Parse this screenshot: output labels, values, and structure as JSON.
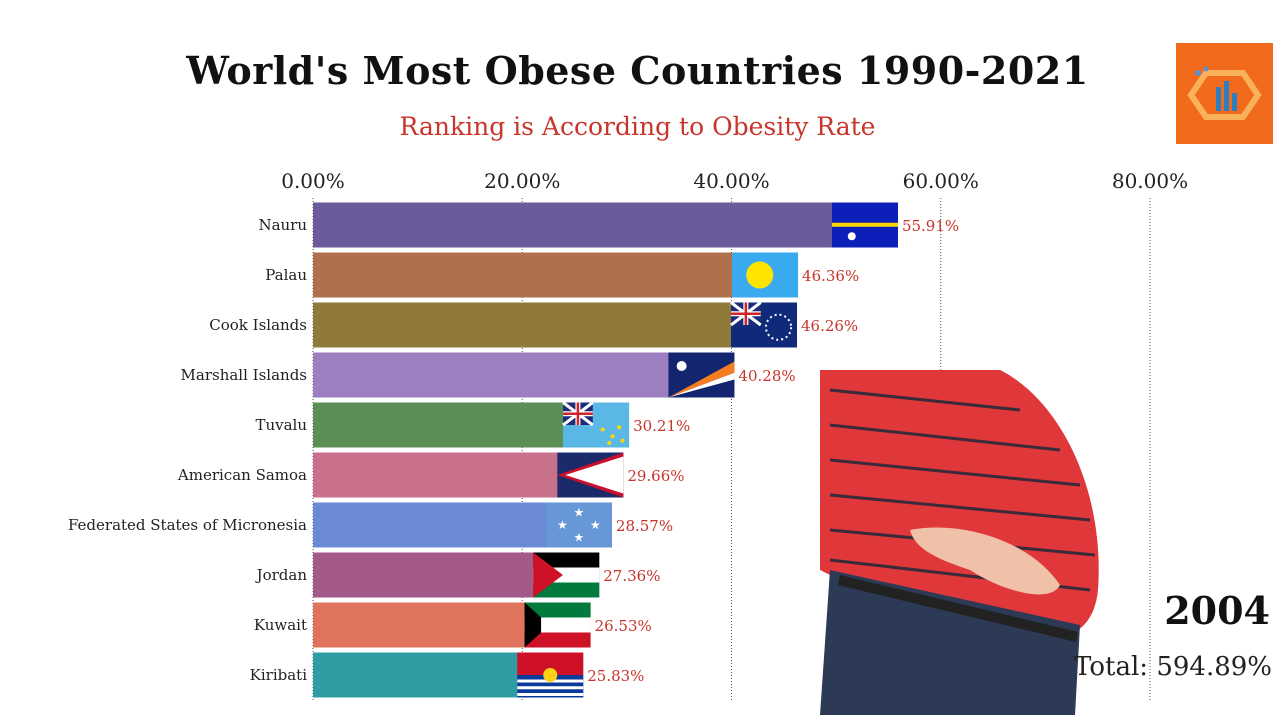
{
  "chart_data": {
    "type": "bar",
    "orientation": "horizontal",
    "title": "World's Most Obese Countries 1990-2021",
    "subtitle": "Ranking is According to Obesity Rate",
    "xlim": [
      0,
      80
    ],
    "x_ticks": [
      "0.00%",
      "20.00%",
      "40.00%",
      "60.00%",
      "80.00%"
    ],
    "x_tick_values": [
      0,
      20,
      40,
      60,
      80
    ],
    "grid": "vertical dotted",
    "categories": [
      "Nauru",
      "Palau",
      "Cook Islands",
      "Marshall Islands",
      "Tuvalu",
      "American Samoa",
      "Federated States of Micronesia",
      "Jordan",
      "Kuwait",
      "Kiribati"
    ],
    "values": [
      55.91,
      46.36,
      46.26,
      40.28,
      30.21,
      29.66,
      28.57,
      27.36,
      26.53,
      25.83
    ],
    "value_labels": [
      "55.91%",
      "46.36%",
      "46.26%",
      "40.28%",
      "30.21%",
      "29.66%",
      "28.57%",
      "27.36%",
      "26.53%",
      "25.83%"
    ],
    "colors": [
      "#6c5b9b",
      "#b0704e",
      "#8f7a3a",
      "#9b7fc0",
      "#5b8f56",
      "#c9718a",
      "#6a8bd4",
      "#a45a88",
      "#df735d",
      "#2f9da3"
    ],
    "flags": [
      "nauru-flag",
      "palau-flag",
      "cook-islands-flag",
      "marshall-islands-flag",
      "tuvalu-flag",
      "american-samoa-flag",
      "micronesia-flag",
      "jordan-flag",
      "kuwait-flag",
      "kiribati-flag"
    ],
    "year": "2004",
    "total": "Total: 594.89%"
  },
  "colors": {
    "title": "#111111",
    "subtitle": "#c8352a",
    "value_label": "#c8352a",
    "logo_bg": "#f26b1d"
  },
  "images": {
    "logo": "logo-icon",
    "person": "overweight-man-photo"
  }
}
